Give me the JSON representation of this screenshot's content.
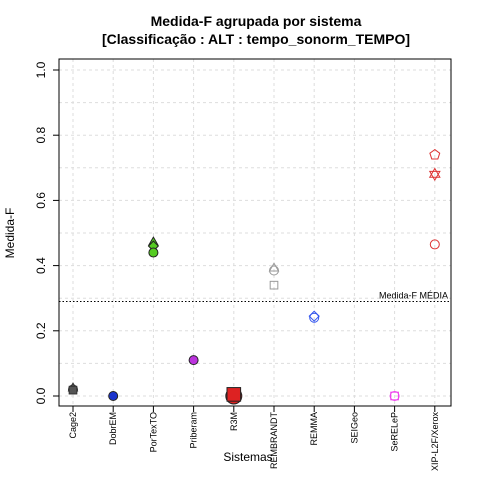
{
  "chart_data": {
    "type": "scatter",
    "title_line1": "Medida-F agrupada por sistema",
    "title_line2": "[Classificação : ALT : tempo_sonorm_TEMPO]",
    "xlabel": "Sistemas",
    "ylabel": "Medida-F",
    "ylim": [
      0,
      1
    ],
    "yticks": [
      "0.0",
      "0.2",
      "0.4",
      "0.6",
      "0.8",
      "1.0"
    ],
    "categories": [
      "Cage2",
      "DobrEM",
      "PorTexTO",
      "Priberam",
      "R3M",
      "REMBRANDT",
      "REMMA",
      "SEIGeo",
      "SeRELeP",
      "XIP-L2F/Xerox"
    ],
    "reference_line": {
      "value": 0.29,
      "label": "Medida-F MÉDIA"
    },
    "grid": true,
    "points": [
      {
        "category": "Cage2",
        "y": 0.02,
        "shape": "circle",
        "color": "#555555",
        "fill": true
      },
      {
        "category": "Cage2",
        "y": 0.022,
        "shape": "triangle",
        "color": "#555555",
        "fill": true
      },
      {
        "category": "Cage2",
        "y": 0.018,
        "shape": "square",
        "color": "#555555",
        "fill": true
      },
      {
        "category": "DobrEM",
        "y": 0.0,
        "shape": "circle",
        "color": "#1a33cc",
        "fill": true
      },
      {
        "category": "PorTexTO",
        "y": 0.47,
        "shape": "triangle",
        "color": "#55cc22",
        "fill": true
      },
      {
        "category": "PorTexTO",
        "y": 0.46,
        "shape": "diamond",
        "color": "#55cc22",
        "fill": true
      },
      {
        "category": "PorTexTO",
        "y": 0.44,
        "shape": "circle",
        "color": "#55cc22",
        "fill": true
      },
      {
        "category": "Priberam",
        "y": 0.11,
        "shape": "circle",
        "color": "#bb33dd",
        "fill": true
      },
      {
        "category": "R3M",
        "y": 0.0,
        "shape": "circle",
        "color": "#dd2222",
        "fill": true
      },
      {
        "category": "R3M",
        "y": 0.005,
        "shape": "square",
        "color": "#dd2222",
        "fill": true
      },
      {
        "category": "REMBRANDT",
        "y": 0.39,
        "shape": "triangle",
        "color": "#999999",
        "fill": false
      },
      {
        "category": "REMBRANDT",
        "y": 0.385,
        "shape": "circle",
        "color": "#999999",
        "fill": false
      },
      {
        "category": "REMBRANDT",
        "y": 0.34,
        "shape": "square",
        "color": "#999999",
        "fill": false
      },
      {
        "category": "REMMA",
        "y": 0.245,
        "shape": "diamond",
        "color": "#3355ee",
        "fill": false
      },
      {
        "category": "REMMA",
        "y": 0.24,
        "shape": "circle",
        "color": "#3355ee",
        "fill": false
      },
      {
        "category": "SeRELeP",
        "y": 0.0,
        "shape": "square",
        "color": "#ee44ee",
        "fill": false
      },
      {
        "category": "SeRELeP",
        "y": 0.0,
        "shape": "circle",
        "color": "#ee44ee",
        "fill": false
      },
      {
        "category": "XIP-L2F/Xerox",
        "y": 0.74,
        "shape": "pentagon",
        "color": "#dd3333",
        "fill": false
      },
      {
        "category": "XIP-L2F/Xerox",
        "y": 0.68,
        "shape": "star6",
        "color": "#dd3333",
        "fill": false
      },
      {
        "category": "XIP-L2F/Xerox",
        "y": 0.465,
        "shape": "circle",
        "color": "#dd3333",
        "fill": false
      }
    ]
  }
}
